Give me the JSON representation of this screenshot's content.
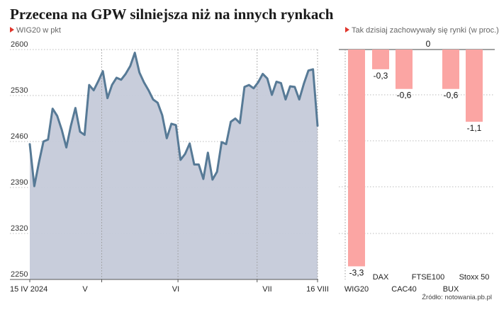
{
  "title": "Przecena na GPW silniejsza niż na innych rynkach",
  "line_chart_subtitle": "WIG20 w pkt",
  "bar_chart_subtitle": "Tak dzisiaj zachowywały się rynki (w proc.)",
  "source": "Źródło: notowania.pb.pl",
  "colors": {
    "line": "#577a96",
    "area": "#c5cad9",
    "bar": "#fba5a3",
    "marker": "#e0362c",
    "grid": "#bbbbbb"
  },
  "chart_data": [
    {
      "type": "area",
      "ylabel": "WIG20 w pkt",
      "ylim": [
        2250,
        2600
      ],
      "yticks": [
        2250,
        2320,
        2390,
        2460,
        2530,
        2600
      ],
      "xtick_labels": [
        "15 IV 2024",
        "V",
        "VI",
        "VII",
        "16 VIII"
      ],
      "series": [
        {
          "values": [
            2456,
            2392,
            2428,
            2460,
            2463,
            2510,
            2499,
            2478,
            2451,
            2484,
            2511,
            2475,
            2470,
            2546,
            2538,
            2552,
            2567,
            2526,
            2546,
            2557,
            2554,
            2563,
            2575,
            2595,
            2565,
            2550,
            2538,
            2524,
            2519,
            2500,
            2465,
            2487,
            2485,
            2432,
            2441,
            2457,
            2425,
            2425,
            2403,
            2443,
            2402,
            2414,
            2459,
            2456,
            2490,
            2495,
            2488,
            2543,
            2546,
            2541,
            2550,
            2563,
            2556,
            2531,
            2551,
            2549,
            2524,
            2544,
            2543,
            2524,
            2548,
            2568,
            2570,
            2484
          ]
        }
      ]
    },
    {
      "type": "bar",
      "categories": [
        "WIG20",
        "DAX",
        "CAC40",
        "FTSE100",
        "BUX",
        "Stoxx 50"
      ],
      "values": [
        -3.3,
        -0.3,
        -0.6,
        0,
        -0.6,
        -1.1
      ],
      "value_labels": [
        "-3,3",
        "-0,3",
        "-0,6",
        "0",
        "-0,6",
        "-1,1"
      ]
    }
  ]
}
